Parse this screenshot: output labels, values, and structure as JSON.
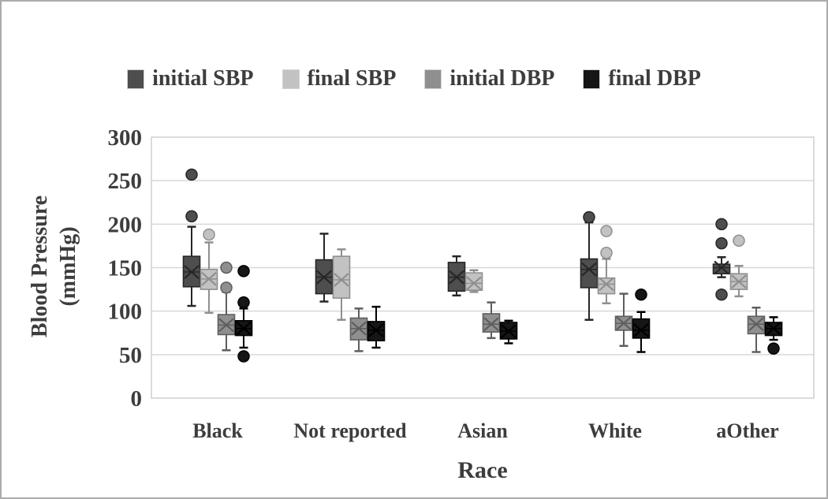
{
  "chart_data": {
    "type": "box",
    "title": "",
    "xlabel": "Race",
    "ylabel": "Blood Pressure (mmHg)",
    "ylabel_lines": [
      "Blood Pressure",
      "(mmHg)"
    ],
    "ylim": [
      0,
      300
    ],
    "yticks": [
      0,
      50,
      100,
      150,
      200,
      250,
      300
    ],
    "grid": true,
    "legend_position": "top-center",
    "categories": [
      "Black",
      "Not reported",
      "Asian",
      "White",
      "aOther"
    ],
    "series": [
      {
        "name": "initial SBP",
        "color": "#4e4e4e",
        "line_color": "#262626",
        "boxes": [
          {
            "low": 106,
            "q1": 128,
            "median": 145,
            "q3": 163,
            "high": 197,
            "mean": 145,
            "outliers_high": [
              257,
              209
            ],
            "outliers_low": []
          },
          {
            "low": 111,
            "q1": 120,
            "median": 139,
            "q3": 159,
            "high": 189,
            "mean": 139,
            "outliers_high": [],
            "outliers_low": []
          },
          {
            "low": 118,
            "q1": 123,
            "median": 139,
            "q3": 156,
            "high": 163,
            "mean": 139,
            "outliers_high": [],
            "outliers_low": []
          },
          {
            "low": 90,
            "q1": 127,
            "median": 148,
            "q3": 160,
            "high": 202,
            "mean": 148,
            "outliers_high": [
              208
            ],
            "outliers_low": []
          },
          {
            "low": 139,
            "q1": 143,
            "median": 150,
            "q3": 154,
            "high": 162,
            "mean": 150,
            "outliers_high": [
              200,
              178
            ],
            "outliers_low": [
              119
            ]
          }
        ]
      },
      {
        "name": "final SBP",
        "color": "#c2c2c2",
        "line_color": "#8f8f8f",
        "boxes": [
          {
            "low": 98,
            "q1": 125,
            "median": 137,
            "q3": 148,
            "high": 179,
            "mean": 137,
            "outliers_high": [
              188
            ],
            "outliers_low": []
          },
          {
            "low": 90,
            "q1": 115,
            "median": 136,
            "q3": 163,
            "high": 171,
            "mean": 136,
            "outliers_high": [],
            "outliers_low": []
          },
          {
            "low": 122,
            "q1": 124,
            "median": 132,
            "q3": 144,
            "high": 147,
            "mean": 132,
            "outliers_high": [],
            "outliers_low": []
          },
          {
            "low": 109,
            "q1": 120,
            "median": 131,
            "q3": 138,
            "high": 160,
            "mean": 131,
            "outliers_high": [
              192,
              167
            ],
            "outliers_low": []
          },
          {
            "low": 117,
            "q1": 125,
            "median": 134,
            "q3": 143,
            "high": 152,
            "mean": 134,
            "outliers_high": [
              181
            ],
            "outliers_low": []
          }
        ]
      },
      {
        "name": "initial DBP",
        "color": "#8f8f8f",
        "line_color": "#5e5e5e",
        "boxes": [
          {
            "low": 55,
            "q1": 73,
            "median": 84,
            "q3": 96,
            "high": 122,
            "mean": 84,
            "outliers_high": [
              150,
              127
            ],
            "outliers_low": []
          },
          {
            "low": 54,
            "q1": 67,
            "median": 80,
            "q3": 92,
            "high": 103,
            "mean": 80,
            "outliers_high": [],
            "outliers_low": []
          },
          {
            "low": 69,
            "q1": 76,
            "median": 85,
            "q3": 97,
            "high": 110,
            "mean": 85,
            "outliers_high": [],
            "outliers_low": []
          },
          {
            "low": 60,
            "q1": 78,
            "median": 86,
            "q3": 94,
            "high": 120,
            "mean": 86,
            "outliers_high": [],
            "outliers_low": []
          },
          {
            "low": 53,
            "q1": 74,
            "median": 85,
            "q3": 94,
            "high": 104,
            "mean": 85,
            "outliers_high": [],
            "outliers_low": []
          }
        ]
      },
      {
        "name": "final DBP",
        "color": "#161616",
        "line_color": "#000000",
        "boxes": [
          {
            "low": 58,
            "q1": 72,
            "median": 80,
            "q3": 89,
            "high": 103,
            "mean": 80,
            "outliers_high": [
              146,
              110
            ],
            "outliers_low": [
              48
            ]
          },
          {
            "low": 58,
            "q1": 66,
            "median": 78,
            "q3": 88,
            "high": 105,
            "mean": 78,
            "outliers_high": [],
            "outliers_low": []
          },
          {
            "low": 63,
            "q1": 68,
            "median": 77,
            "q3": 87,
            "high": 89,
            "mean": 77,
            "outliers_high": [],
            "outliers_low": []
          },
          {
            "low": 53,
            "q1": 69,
            "median": 78,
            "q3": 91,
            "high": 99,
            "mean": 78,
            "outliers_high": [
              119
            ],
            "outliers_low": []
          },
          {
            "low": 67,
            "q1": 72,
            "median": 80,
            "q3": 87,
            "high": 93,
            "mean": 80,
            "outliers_high": [],
            "outliers_low": [
              57
            ]
          }
        ]
      }
    ]
  },
  "colors": {
    "text": "#3d3d3d",
    "grid": "#d8d8d8",
    "plot_border": "#cfcfcf",
    "background": "#ffffff",
    "frame_border": "#ababab"
  }
}
